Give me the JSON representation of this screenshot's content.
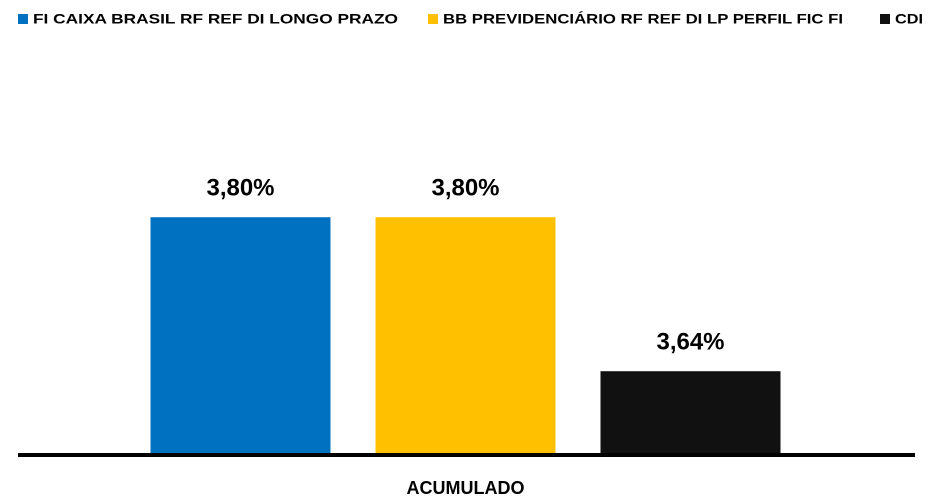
{
  "chart_data": {
    "type": "bar",
    "categories": [
      "ACUMULADO"
    ],
    "series": [
      {
        "name": "FI CAIXA BRASIL RF REF DI LONGO PRAZO",
        "color": "#0070c0",
        "values": [
          3.8
        ],
        "value_labels": [
          "3,80%"
        ]
      },
      {
        "name": "BB PREVIDENCIÁRIO RF REF DI LP PERFIL FIC FI",
        "color": "#ffc000",
        "values": [
          3.8
        ],
        "value_labels": [
          "3,80%"
        ]
      },
      {
        "name": "CDI",
        "color": "#111111",
        "values": [
          3.64
        ],
        "value_labels": [
          "3,64%"
        ]
      }
    ],
    "ylim": [
      3.555,
      3.9
    ],
    "legend": "top"
  }
}
